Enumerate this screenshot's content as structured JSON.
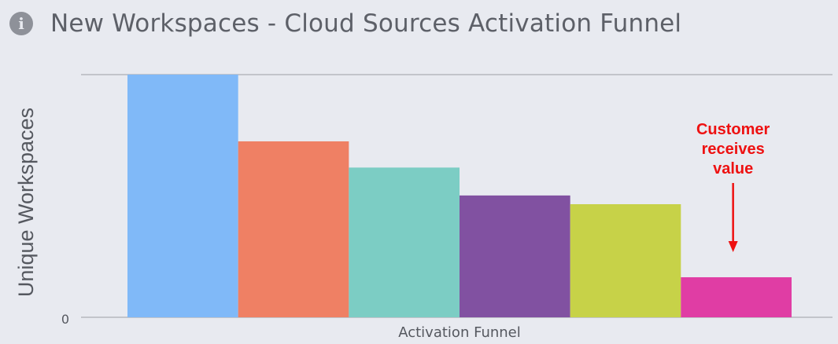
{
  "header": {
    "title": "New Workspaces - Cloud Sources Activation Funnel",
    "icon": "info-icon"
  },
  "chart_data": {
    "type": "bar",
    "title": "New Workspaces - Cloud Sources Activation Funnel",
    "xlabel": "Activation Funnel",
    "ylabel": "Unique Workspaces",
    "yticks": [
      "0"
    ],
    "ylim": [
      0,
      100
    ],
    "grid": true,
    "legend": "none",
    "series": [
      {
        "values": [
          100,
          72.5,
          61.7,
          50.2,
          46.6,
          16.5
        ]
      }
    ],
    "colors": [
      "#80b9f8",
      "#ef8064",
      "#7ccdc4",
      "#8151a1",
      "#c7d248",
      "#e03da4"
    ],
    "annotation": {
      "lines": [
        "Customer",
        "receives",
        "value"
      ],
      "target_bar": 5,
      "color": "#ee1111"
    }
  }
}
